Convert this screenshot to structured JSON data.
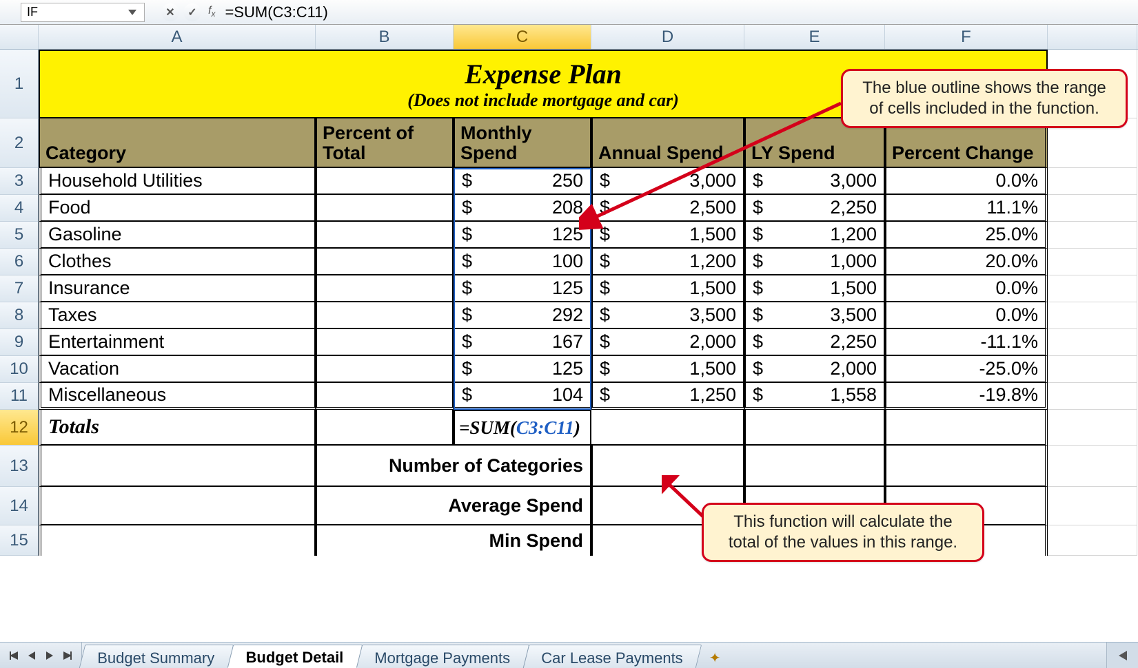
{
  "formula_bar": {
    "name_box": "IF",
    "formula": "=SUM(C3:C11)"
  },
  "columns": [
    "A",
    "B",
    "C",
    "D",
    "E",
    "F"
  ],
  "active_col": "C",
  "title": {
    "main": "Expense Plan",
    "sub": "(Does not include mortgage and car)"
  },
  "headers": {
    "A": "Category",
    "B": "Percent of Total",
    "C": "Monthly Spend",
    "D": "Annual Spend",
    "E": "LY Spend",
    "F": "Percent Change"
  },
  "rows": [
    {
      "r": 3,
      "cat": "Household Utilities",
      "month": "250",
      "annual": "3,000",
      "ly": "3,000",
      "pct": "0.0%"
    },
    {
      "r": 4,
      "cat": "Food",
      "month": "208",
      "annual": "2,500",
      "ly": "2,250",
      "pct": "11.1%"
    },
    {
      "r": 5,
      "cat": "Gasoline",
      "month": "125",
      "annual": "1,500",
      "ly": "1,200",
      "pct": "25.0%"
    },
    {
      "r": 6,
      "cat": "Clothes",
      "month": "100",
      "annual": "1,200",
      "ly": "1,000",
      "pct": "20.0%"
    },
    {
      "r": 7,
      "cat": "Insurance",
      "month": "125",
      "annual": "1,500",
      "ly": "1,500",
      "pct": "0.0%"
    },
    {
      "r": 8,
      "cat": "Taxes",
      "month": "292",
      "annual": "3,500",
      "ly": "3,500",
      "pct": "0.0%"
    },
    {
      "r": 9,
      "cat": "Entertainment",
      "month": "167",
      "annual": "2,000",
      "ly": "2,250",
      "pct": "-11.1%"
    },
    {
      "r": 10,
      "cat": "Vacation",
      "month": "125",
      "annual": "1,500",
      "ly": "2,000",
      "pct": "-25.0%"
    },
    {
      "r": 11,
      "cat": "Miscellaneous",
      "month": "104",
      "annual": "1,250",
      "ly": "1,558",
      "pct": "-19.8%"
    }
  ],
  "totals_label": "Totals",
  "editing": {
    "prefix": "=SUM(",
    "range": "C3:C11",
    "suffix": ")"
  },
  "summary": {
    "r13": "Number of Categories",
    "r14": "Average Spend",
    "r15": "Min Spend"
  },
  "callouts": {
    "top": "The blue outline shows the range of cells included in the function.",
    "bottom": "This function will calculate the total of the values in this range."
  },
  "tabs": {
    "t1": "Budget Summary",
    "t2": "Budget Detail",
    "t3": "Mortgage Payments",
    "t4": "Car Lease Payments"
  },
  "colors": {
    "title_bg": "#fff200",
    "header_bg": "#a89c68",
    "range_outline": "#1f5fc4",
    "callout_border": "#d4001a",
    "callout_bg": "#fff3d0"
  }
}
